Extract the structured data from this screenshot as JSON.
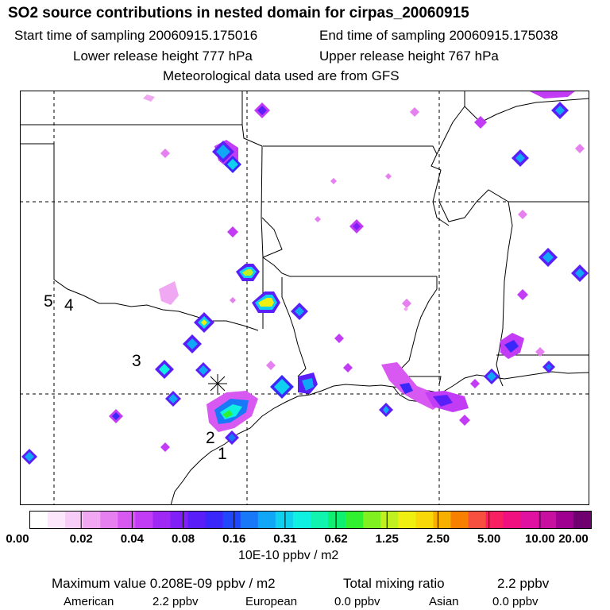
{
  "header": {
    "title": "SO2 source contributions in nested domain for cirpas_20060915",
    "start_time": "Start time of sampling 20060915.175016",
    "end_time": "End time of sampling 20060915.175038",
    "lower_release": "Lower release height  777 hPa",
    "upper_release": "Upper release height  767 hPa",
    "met_data": "Meteorological data used are from GFS"
  },
  "map": {
    "track_labels": [
      "5",
      "4",
      "3",
      "2",
      "1"
    ],
    "receptor_marker": "star-icon"
  },
  "colorbar": {
    "tick_labels": [
      "0.00",
      "0.02",
      "0.04",
      "0.08",
      "0.16",
      "0.31",
      "0.62",
      "1.25",
      "2.50",
      "5.00",
      "10.00",
      "20.00"
    ],
    "units": "10E-10 ppbv / m2",
    "colors": [
      "#ffffff",
      "#fbe6fb",
      "#f7ccf7",
      "#f0a8f2",
      "#e680f0",
      "#d858f2",
      "#c23cf5",
      "#a028f5",
      "#8020f7",
      "#5a1ff8",
      "#3a28fa",
      "#2048fa",
      "#1878f8",
      "#10a8f6",
      "#10d0f0",
      "#10f0e0",
      "#10f4b0",
      "#10f070",
      "#30f030",
      "#80f020",
      "#c0f020",
      "#f0f010",
      "#f8d808",
      "#f8b000",
      "#f88000",
      "#f85040",
      "#f82060",
      "#f01080",
      "#e010a0",
      "#c810a0",
      "#a00090",
      "#700070"
    ]
  },
  "footer": {
    "max_label": "Maximum value  0.208E-09 ppbv / m2",
    "total_label": "Total mixing ratio",
    "total_value": "2.2 ppbv",
    "american_label": "American",
    "american_value": "2.2 ppbv",
    "european_label": "European",
    "european_value": "0.0 ppbv",
    "asian_label": "Asian",
    "asian_value": "0.0 ppbv"
  }
}
